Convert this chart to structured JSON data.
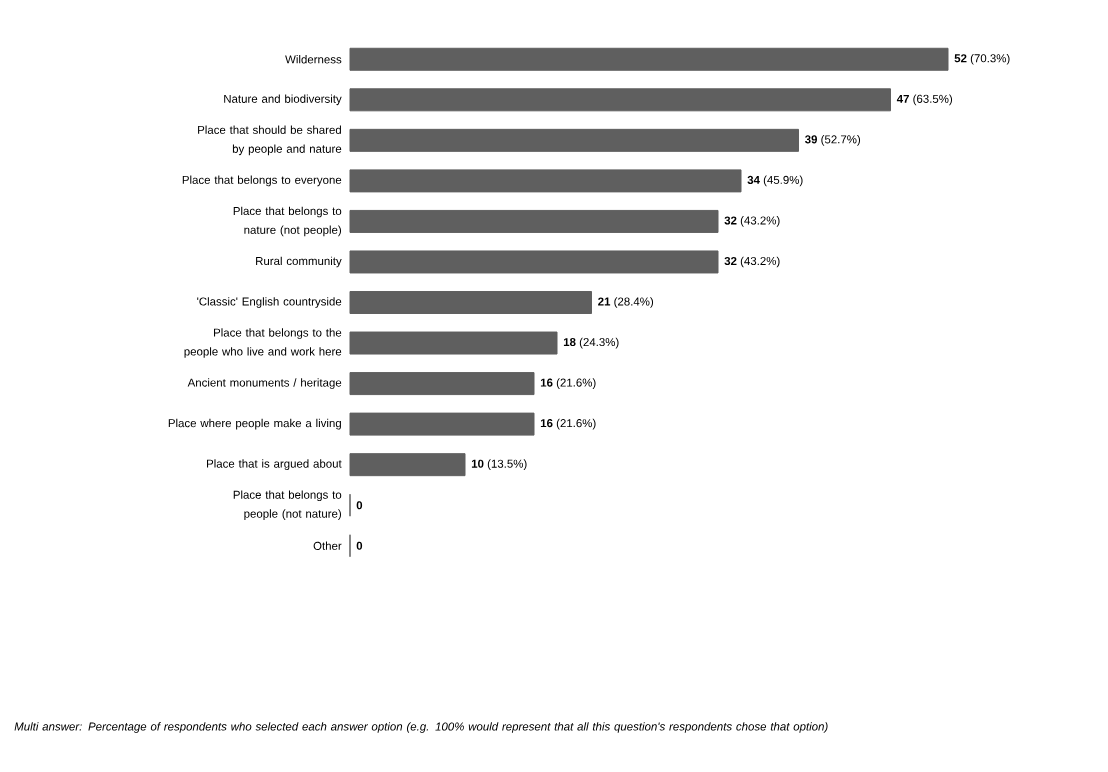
{
  "chart_data": {
    "type": "bar",
    "orientation": "horizontal",
    "color": "#5f5f5f",
    "categories": [
      "Wilderness",
      "Nature and biodiversity",
      "Place that should be shared by people and nature",
      "Place that belongs to everyone",
      "Place that belongs to nature (not people)",
      "Rural community",
      "'Classic' English countryside",
      "Place that belongs to the people who live and work here",
      "Ancient monuments / heritage",
      "Place where people make a living",
      "Place that is argued about",
      "Place that belongs to people (not nature)",
      "Other"
    ],
    "values": [
      52,
      47,
      39,
      34,
      32,
      32,
      21,
      18,
      16,
      16,
      10,
      0,
      0
    ],
    "value_labels": [
      "**52** (70.3%)",
      "**47** (63.5%)",
      "**39** (52.7%)",
      "**34** (45.9%)",
      "**32** (43.2%)",
      "**32** (43.2%)",
      "**21** (28.4%)",
      "**18** (24.3%)",
      "**16** (21.6%)",
      "**16** (21.6%)",
      "**10** (13.5%)",
      "**0**",
      "**0**"
    ],
    "annotations": [
      "Multi answer: Percentage of respondents who selected each answer option (e.g. 100% would represent that all this question's respondents chose that option)"
    ]
  }
}
